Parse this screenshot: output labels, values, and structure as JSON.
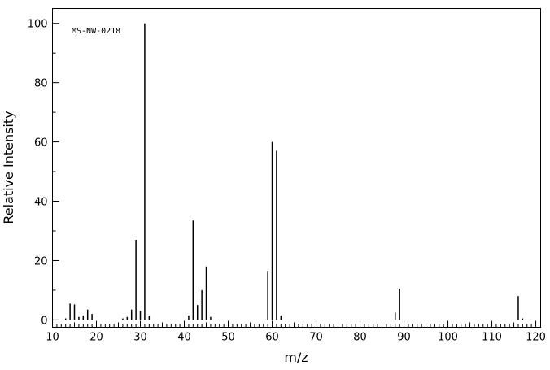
{
  "chart_data": {
    "type": "stem",
    "annotation": "MS-NW-0218",
    "xlabel": "m/z",
    "ylabel": "Relative Intensity",
    "x": [
      13,
      14,
      15,
      16,
      17,
      18,
      19,
      26,
      27,
      28,
      29,
      30,
      31,
      32,
      41,
      42,
      43,
      44,
      45,
      46,
      59,
      60,
      61,
      62,
      88,
      89,
      116,
      117
    ],
    "values": [
      0.5,
      5.5,
      5.2,
      1,
      1.5,
      3.5,
      2,
      0.5,
      1,
      3.5,
      27,
      3,
      100,
      1.5,
      1.5,
      33.5,
      5,
      10,
      18,
      1,
      16.5,
      60,
      57,
      1.5,
      2.5,
      10.5,
      8,
      0.5
    ],
    "color": "#000000",
    "xlim": [
      10,
      121.1
    ],
    "ylim": [
      -2.5,
      105
    ],
    "xticks": [
      10,
      20,
      30,
      40,
      50,
      60,
      70,
      80,
      90,
      100,
      110,
      120
    ],
    "yticks": [
      0,
      20,
      40,
      60,
      80,
      100
    ]
  }
}
